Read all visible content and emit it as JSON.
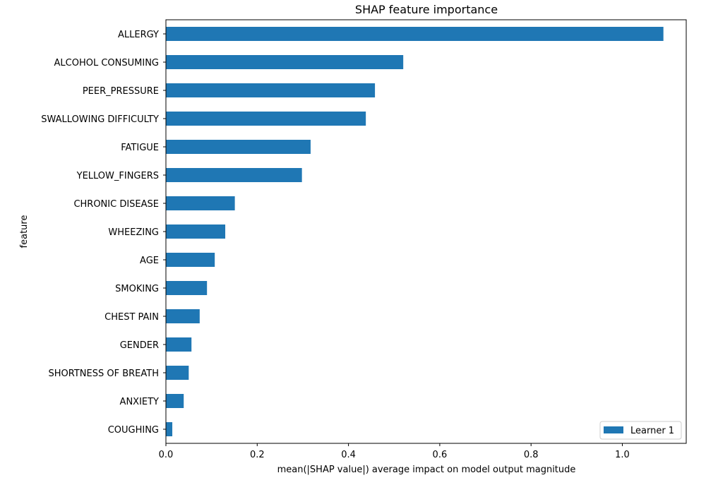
{
  "chart_data": {
    "type": "bar",
    "orientation": "horizontal",
    "title": "SHAP feature importance",
    "xlabel": "mean(|SHAP value|) average impact on model output magnitude",
    "ylabel": "feature",
    "xlim": [
      0,
      1.14
    ],
    "x_ticks": [
      "0.0",
      "0.2",
      "0.4",
      "0.6",
      "0.8",
      "1.0"
    ],
    "grid": false,
    "legend_position": "lower-right",
    "categories": [
      "ALLERGY ",
      "ALCOHOL CONSUMING",
      "PEER_PRESSURE",
      "SWALLOWING DIFFICULTY",
      "FATIGUE ",
      "YELLOW_FINGERS",
      "CHRONIC DISEASE",
      "WHEEZING",
      "AGE",
      "SMOKING",
      "CHEST PAIN",
      "GENDER",
      "SHORTNESS OF BREATH",
      "ANXIETY",
      "COUGHING"
    ],
    "series": [
      {
        "name": "Learner 1",
        "color": "#1f77b4",
        "values": [
          1.09,
          0.52,
          0.458,
          0.438,
          0.317,
          0.298,
          0.151,
          0.13,
          0.107,
          0.09,
          0.074,
          0.056,
          0.05,
          0.039,
          0.014
        ]
      }
    ]
  }
}
